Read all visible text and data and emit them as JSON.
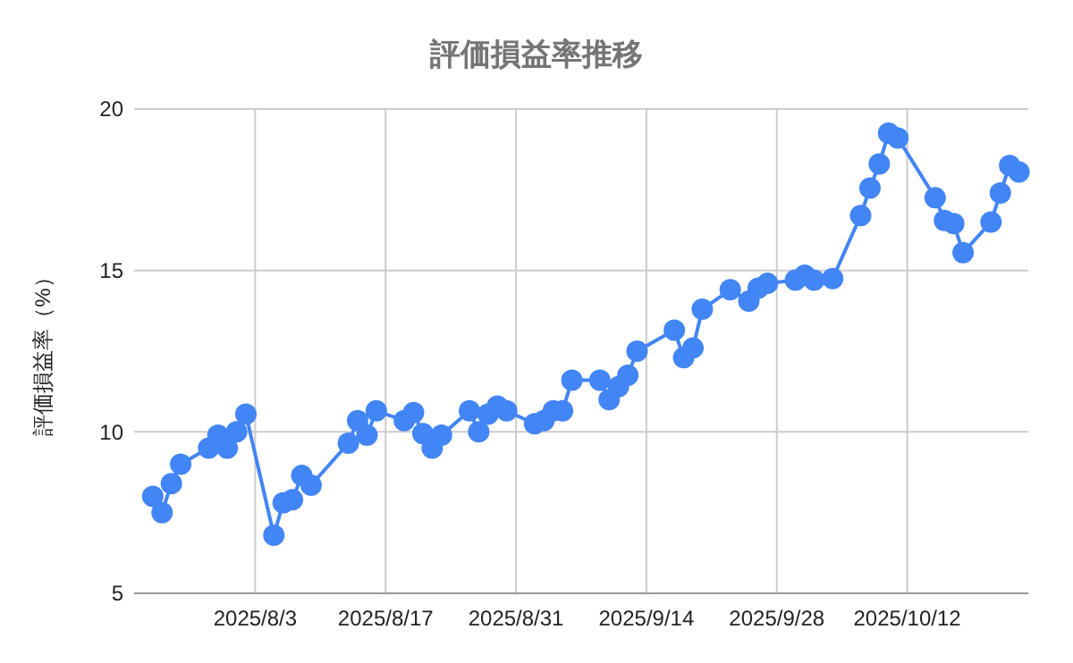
{
  "chart_data": {
    "type": "line",
    "title": "評価損益率推移",
    "ylabel": "評価損益率（%）",
    "x": [
      "2025-07-23",
      "2025-07-24",
      "2025-07-25",
      "2025-07-26",
      "2025-07-29",
      "2025-07-30",
      "2025-07-31",
      "2025-08-01",
      "2025-08-02",
      "2025-08-05",
      "2025-08-06",
      "2025-08-07",
      "2025-08-08",
      "2025-08-09",
      "2025-08-13",
      "2025-08-14",
      "2025-08-15",
      "2025-08-16",
      "2025-08-19",
      "2025-08-20",
      "2025-08-21",
      "2025-08-22",
      "2025-08-23",
      "2025-08-26",
      "2025-08-27",
      "2025-08-28",
      "2025-08-29",
      "2025-08-30",
      "2025-09-02",
      "2025-09-03",
      "2025-09-04",
      "2025-09-05",
      "2025-09-06",
      "2025-09-09",
      "2025-09-10",
      "2025-09-11",
      "2025-09-12",
      "2025-09-13",
      "2025-09-17",
      "2025-09-18",
      "2025-09-19",
      "2025-09-20",
      "2025-09-23",
      "2025-09-25",
      "2025-09-26",
      "2025-09-27",
      "2025-09-30",
      "2025-10-01",
      "2025-10-02",
      "2025-10-04",
      "2025-10-07",
      "2025-10-08",
      "2025-10-09",
      "2025-10-10",
      "2025-10-11",
      "2025-10-15",
      "2025-10-16",
      "2025-10-17",
      "2025-10-18",
      "2025-10-21",
      "2025-10-22",
      "2025-10-23",
      "2025-10-24"
    ],
    "series": [
      {
        "color": "#4285f4",
        "values": [
          8.0,
          7.5,
          8.4,
          9.0,
          9.5,
          9.9,
          9.5,
          10.0,
          10.55,
          6.8,
          7.8,
          7.9,
          8.65,
          8.35,
          9.65,
          10.35,
          9.9,
          10.65,
          10.35,
          10.6,
          9.95,
          9.5,
          9.9,
          10.65,
          10.0,
          10.55,
          10.8,
          10.65,
          10.25,
          10.35,
          10.65,
          10.65,
          11.6,
          11.6,
          11.0,
          11.4,
          11.75,
          12.5,
          13.15,
          12.3,
          12.6,
          13.8,
          14.4,
          14.05,
          14.45,
          14.6,
          14.7,
          14.85,
          14.7,
          14.75,
          16.7,
          17.55,
          18.3,
          19.25,
          19.1,
          17.25,
          16.55,
          16.45,
          15.55,
          16.5,
          17.4,
          18.25,
          18.05
        ]
      }
    ],
    "xlim": [
      "2025-07-21",
      "2025-10-25"
    ],
    "xticks": [
      {
        "value": "2025-08-03",
        "label": "2025/8/3"
      },
      {
        "value": "2025-08-17",
        "label": "2025/8/17"
      },
      {
        "value": "2025-08-31",
        "label": "2025/8/31"
      },
      {
        "value": "2025-09-14",
        "label": "2025/9/14"
      },
      {
        "value": "2025-09-28",
        "label": "2025/9/28"
      },
      {
        "value": "2025-10-12",
        "label": "2025/10/12"
      }
    ],
    "ylim": [
      5,
      20
    ],
    "yticks": [
      5,
      10,
      15,
      20
    ],
    "grid": true,
    "marker": "circle",
    "line_style": "solid"
  }
}
